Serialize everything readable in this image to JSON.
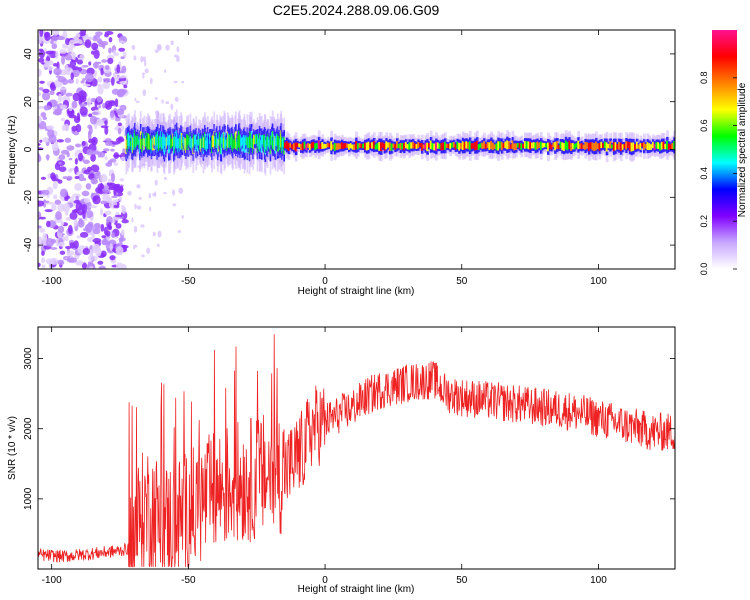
{
  "title": "C2E5.2024.288.09.06.G09",
  "chart_data": [
    {
      "type": "heatmap",
      "xlabel": "Height of straight line (km)",
      "ylabel": "Frequency (Hz)",
      "xlim": [
        -105,
        128
      ],
      "ylim": [
        -50,
        50
      ],
      "x_ticks": [
        -100,
        -50,
        0,
        50,
        100
      ],
      "y_ticks": [
        -40,
        -20,
        0,
        20,
        40
      ],
      "colorbar": {
        "label": "Normalized spectral amplitude",
        "range": [
          0,
          1
        ],
        "ticks": [
          0.0,
          0.2,
          0.4,
          0.6,
          0.8
        ],
        "colors": [
          "#ffffff",
          "#c8a8ff",
          "#8000ff",
          "#0000ff",
          "#00ffff",
          "#00ff00",
          "#ffff00",
          "#ff8000",
          "#ff0000",
          "#ff1090"
        ]
      },
      "features": [
        {
          "x_range": [
            -105,
            -73
          ],
          "description_value": "broadband noise",
          "y_range": [
            -50,
            50
          ],
          "amplitude": 0.15
        },
        {
          "x_range": [
            -73,
            -15
          ],
          "y_center": 3,
          "y_halfwidth": 5,
          "amplitude": 0.6
        },
        {
          "x_range": [
            -15,
            128
          ],
          "y_center": 1.5,
          "y_halfwidth": 2.5,
          "amplitude": 0.9
        }
      ]
    },
    {
      "type": "line",
      "xlabel": "Height of straight line (km)",
      "ylabel": "SNR (10 * v/v)",
      "xlim": [
        -105,
        128
      ],
      "ylim": [
        0,
        3450
      ],
      "x_ticks": [
        -100,
        -50,
        0,
        50,
        100
      ],
      "y_ticks": [
        1000,
        2000,
        3000
      ],
      "series": [
        {
          "color": "#ee2222",
          "x": [
            -105,
            -95,
            -85,
            -75,
            -71,
            -68,
            -65,
            -62,
            -60,
            -55,
            -50,
            -45,
            -40,
            -35,
            -30,
            -25,
            -20,
            -15,
            -12,
            -8,
            -5,
            -3,
            0,
            5,
            10,
            15,
            20,
            25,
            30,
            35,
            40,
            43,
            45,
            50,
            60,
            70,
            80,
            90,
            100,
            110,
            120,
            128
          ],
          "values": [
            200,
            180,
            220,
            260,
            300,
            700,
            900,
            800,
            600,
            700,
            800,
            950,
            1100,
            1200,
            1250,
            1300,
            1350,
            1400,
            1500,
            1700,
            2000,
            2050,
            2100,
            2200,
            2300,
            2450,
            2550,
            2600,
            2650,
            2680,
            2700,
            2550,
            2500,
            2450,
            2400,
            2350,
            2300,
            2250,
            2150,
            2050,
            1950,
            1950
          ]
        }
      ]
    }
  ]
}
